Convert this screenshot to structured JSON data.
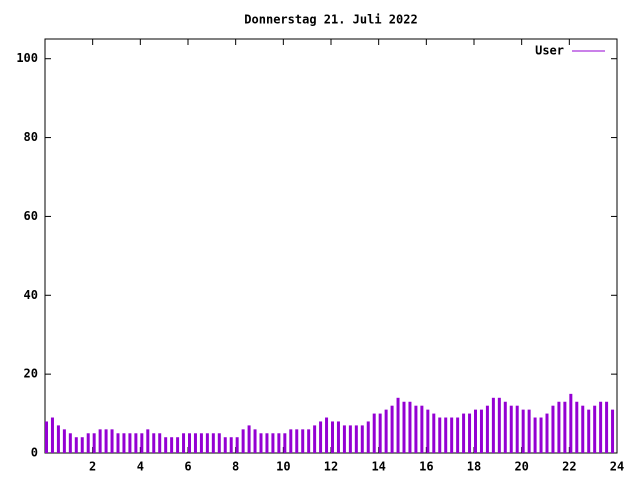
{
  "chart_data": {
    "type": "impulse",
    "title": "Donnerstag 21. Juli 2022",
    "x": [
      0,
      0.25,
      0.5,
      0.75,
      1,
      1.25,
      1.5,
      1.75,
      2,
      2.25,
      2.5,
      2.75,
      3,
      3.25,
      3.5,
      3.75,
      4,
      4.25,
      4.5,
      4.75,
      5,
      5.25,
      5.5,
      5.75,
      6,
      6.25,
      6.5,
      6.75,
      7,
      7.25,
      7.5,
      7.75,
      8,
      8.25,
      8.5,
      8.75,
      9,
      9.25,
      9.5,
      9.75,
      10,
      10.25,
      10.5,
      10.75,
      11,
      11.25,
      11.5,
      11.75,
      12,
      12.25,
      12.5,
      12.75,
      13,
      13.25,
      13.5,
      13.75,
      14,
      14.25,
      14.5,
      14.75,
      15,
      15.25,
      15.5,
      15.75,
      16,
      16.25,
      16.5,
      16.75,
      17,
      17.25,
      17.5,
      17.75,
      18,
      18.25,
      18.5,
      18.75,
      19,
      19.25,
      19.5,
      19.75,
      20,
      20.25,
      20.5,
      20.75,
      21,
      21.25,
      21.5,
      21.75,
      22,
      22.25,
      22.5,
      22.75,
      23,
      23.25,
      23.5,
      23.75
    ],
    "series": [
      {
        "name": "User",
        "color": "#9400d3",
        "values": [
          8,
          9,
          7,
          6,
          5,
          4,
          4,
          5,
          5,
          6,
          6,
          6,
          5,
          5,
          5,
          5,
          5,
          6,
          5,
          5,
          4,
          4,
          4,
          5,
          5,
          5,
          5,
          5,
          5,
          5,
          4,
          4,
          4,
          6,
          7,
          6,
          5,
          5,
          5,
          5,
          5,
          6,
          6,
          6,
          6,
          7,
          8,
          9,
          8,
          8,
          7,
          7,
          7,
          7,
          8,
          10,
          10,
          11,
          12,
          14,
          13,
          13,
          12,
          12,
          11,
          10,
          9,
          9,
          9,
          9,
          10,
          10,
          11,
          11,
          12,
          14,
          14,
          13,
          12,
          12,
          11,
          11,
          9,
          9,
          10,
          12,
          13,
          13,
          15,
          13,
          12,
          11,
          12,
          13,
          13,
          11
        ]
      }
    ],
    "xlim": [
      0,
      24
    ],
    "xticks": [
      2,
      4,
      6,
      8,
      10,
      12,
      14,
      16,
      18,
      20,
      22,
      24
    ],
    "ylim": [
      0,
      105
    ],
    "yticks": [
      0,
      20,
      40,
      60,
      80,
      100
    ],
    "legend": "top-right"
  }
}
